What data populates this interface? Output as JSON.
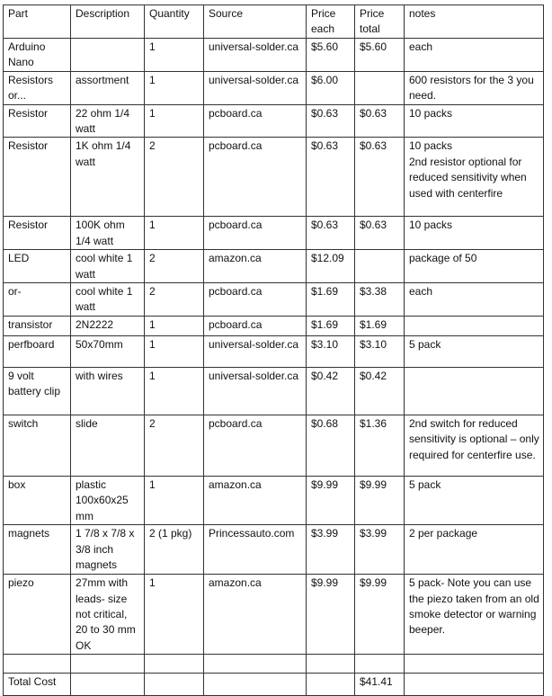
{
  "headers": [
    "Part",
    "Description",
    "Quantity",
    "Source",
    "Price each",
    "Price total",
    "notes"
  ],
  "rows": [
    [
      "Arduino Nano",
      "",
      "1",
      "universal-solder.ca",
      "$5.60",
      "$5.60",
      "each"
    ],
    [
      "Resistors or...",
      "assortment",
      "1",
      "universal-solder.ca",
      "$6.00",
      "",
      "600 resistors for the 3 you need."
    ],
    [
      "Resistor",
      "22 ohm 1/4 watt",
      "1",
      "pcboard.ca",
      "$0.63",
      "$0.63",
      "10 packs"
    ],
    [
      "Resistor",
      "1K ohm 1/4 watt",
      "2",
      "pcboard.ca",
      "$0.63",
      "$0.63",
      "10 packs\n2nd resistor optional for reduced sensitivity when used with centerfire"
    ],
    [
      "Resistor",
      "100K ohm 1/4 watt",
      "1",
      "pcboard.ca",
      "$0.63",
      "$0.63",
      "10 packs"
    ],
    [
      "LED",
      "cool white 1 watt",
      "2",
      "amazon.ca",
      "$12.09",
      "",
      "package of 50"
    ],
    [
      "or-",
      "cool white 1 watt",
      "2",
      "pcboard.ca",
      "$1.69",
      "$3.38",
      "each"
    ],
    [
      "transistor",
      "2N2222",
      "1",
      "pcboard.ca",
      "$1.69",
      "$1.69",
      ""
    ],
    [
      "perfboard",
      "50x70mm",
      "1",
      "universal-solder.ca",
      "$3.10",
      "$3.10",
      "5 pack"
    ],
    [
      "9 volt battery clip",
      "with wires",
      "1",
      "universal-solder.ca",
      "$0.42",
      "$0.42",
      ""
    ],
    [
      "switch",
      "slide",
      "2",
      "pcboard.ca",
      "$0.68",
      "$1.36",
      " 2nd switch for reduced sensitivity is optional – only required for centerfire use."
    ],
    [
      "box",
      "plastic 100x60x25 mm",
      "1",
      "amazon.ca",
      "$9.99",
      "$9.99",
      "5 pack"
    ],
    [
      "magnets",
      " 1 7/8 x 7/8 x 3/8 inch magnets",
      "2 (1 pkg)",
      "Princessauto.com",
      "$3.99",
      "$3.99",
      " 2 per package"
    ],
    [
      "piezo",
      "27mm with leads- size not critical, 20 to 30 mm OK",
      "1",
      "amazon.ca",
      "$9.99",
      "$9.99",
      "5 pack- Note you can use the piezo taken from an old smoke detector or warning beeper."
    ],
    [
      "",
      "",
      "",
      "",
      "",
      "",
      ""
    ],
    [
      "Total Cost",
      "",
      "",
      "",
      "",
      "$41.41",
      ""
    ]
  ]
}
